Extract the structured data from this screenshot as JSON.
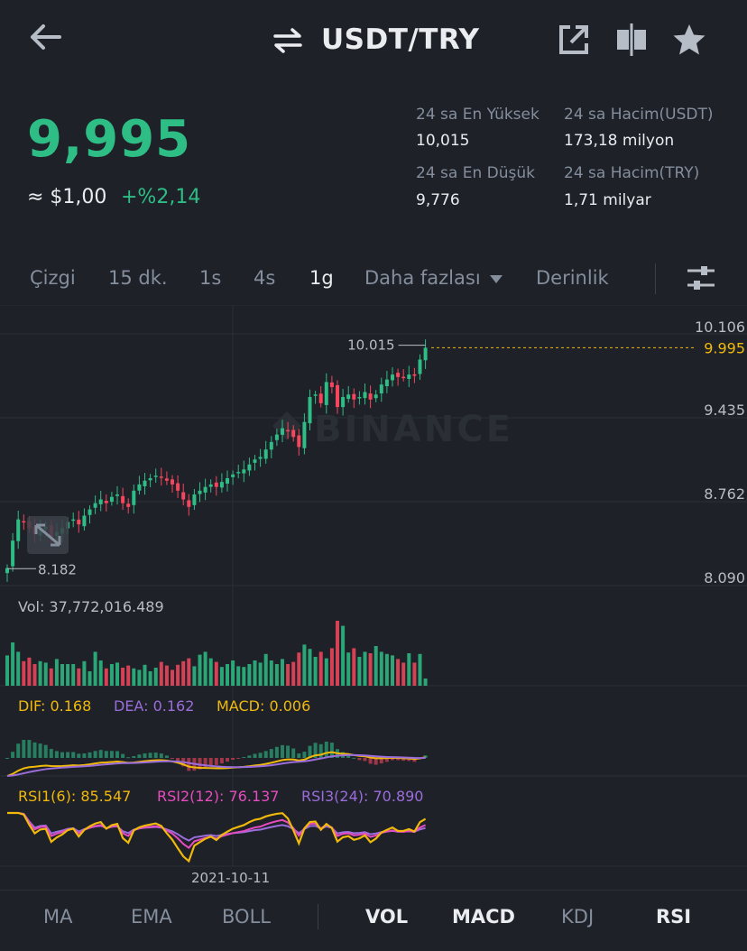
{
  "header": {
    "title": "USDT/TRY"
  },
  "price": {
    "last": "9,995",
    "usd": "≈ $1,00",
    "change": "+%2,14"
  },
  "stats": [
    {
      "label": "24 sa En Yüksek",
      "value": "10,015"
    },
    {
      "label": "24 sa Hacim(USDT)",
      "value": "173,18 milyon"
    },
    {
      "label": "24 sa En Düşük",
      "value": "9,776"
    },
    {
      "label": "24 sa Hacim(TRY)",
      "value": "1,71 milyar"
    }
  ],
  "timeframes": [
    "Çizgi",
    "15 dk.",
    "1s",
    "4s",
    "1g",
    "Daha fazlası",
    "Derinlik"
  ],
  "active_timeframe": "1g",
  "indicators": [
    "MA",
    "EMA",
    "BOLL",
    "VOL",
    "MACD",
    "KDJ",
    "RSI"
  ],
  "active_indicators": [
    "VOL",
    "MACD",
    "RSI"
  ],
  "colors": {
    "up": "#2ebd85",
    "down": "#f6465d",
    "bg": "#1e2128",
    "accent": "#f0b90b"
  },
  "chart": {
    "price_axis": [
      "10.106",
      "9.995",
      "9.435",
      "8.762",
      "8.090"
    ],
    "max_label": "10.015",
    "min_label": "8.182",
    "watermark": "BINANCE",
    "date_label": "2021-10-11",
    "vol_label": "Vol: 37,772,016.489",
    "macd_labels": {
      "dif": "DIF: 0.168",
      "dea": "DEA: 0.162",
      "macd": "MACD: 0.006"
    },
    "rsi_labels": {
      "rsi1": "RSI1(6): 85.547",
      "rsi2": "RSI2(12): 76.137",
      "rsi3": "RSI3(24): 70.890"
    }
  },
  "chart_data": {
    "type": "candlestick",
    "x_label": "2021-10-11",
    "ylim": [
      8.09,
      10.106
    ],
    "last_price": 9.995,
    "high_marker": 10.015,
    "low_marker": 8.182,
    "closes": [
      8.23,
      8.45,
      8.62,
      8.6,
      8.55,
      8.5,
      8.55,
      8.56,
      8.48,
      8.52,
      8.55,
      8.6,
      8.62,
      8.58,
      8.65,
      8.7,
      8.75,
      8.78,
      8.75,
      8.8,
      8.82,
      8.75,
      8.72,
      8.85,
      8.9,
      8.93,
      8.95,
      8.97,
      8.96,
      8.93,
      8.9,
      8.85,
      8.78,
      8.72,
      8.82,
      8.85,
      8.88,
      8.9,
      8.88,
      8.92,
      8.95,
      8.98,
      9.0,
      9.02,
      9.06,
      9.1,
      9.12,
      9.18,
      9.24,
      9.3,
      9.35,
      9.33,
      9.28,
      9.2,
      9.4,
      9.6,
      9.62,
      9.55,
      9.72,
      9.68,
      9.52,
      9.6,
      9.62,
      9.58,
      9.6,
      9.64,
      9.58,
      9.62,
      9.7,
      9.74,
      9.78,
      9.76,
      9.76,
      9.78,
      9.77,
      9.9,
      9.995
    ],
    "volume_max": 37772016.489,
    "volume": [
      0.42,
      0.6,
      0.47,
      0.34,
      0.39,
      0.3,
      0.34,
      0.32,
      0.24,
      0.37,
      0.3,
      0.3,
      0.3,
      0.24,
      0.34,
      0.2,
      0.47,
      0.35,
      0.24,
      0.3,
      0.32,
      0.25,
      0.28,
      0.24,
      0.22,
      0.29,
      0.2,
      0.25,
      0.33,
      0.28,
      0.22,
      0.29,
      0.34,
      0.38,
      0.27,
      0.43,
      0.47,
      0.38,
      0.33,
      0.26,
      0.3,
      0.35,
      0.27,
      0.26,
      0.3,
      0.35,
      0.32,
      0.44,
      0.35,
      0.3,
      0.37,
      0.3,
      0.33,
      0.46,
      0.57,
      0.51,
      0.4,
      0.47,
      0.38,
      0.52,
      0.9,
      0.83,
      0.46,
      0.52,
      0.4,
      0.47,
      0.45,
      0.55,
      0.47,
      0.44,
      0.42,
      0.37,
      0.32,
      0.45,
      0.32,
      0.44,
      0.1
    ],
    "macd": {
      "dif": 0.168,
      "dea": 0.162,
      "macd": 0.006
    },
    "rsi": {
      "rsi6": 85.547,
      "rsi12": 76.137,
      "rsi24": 70.89
    }
  }
}
